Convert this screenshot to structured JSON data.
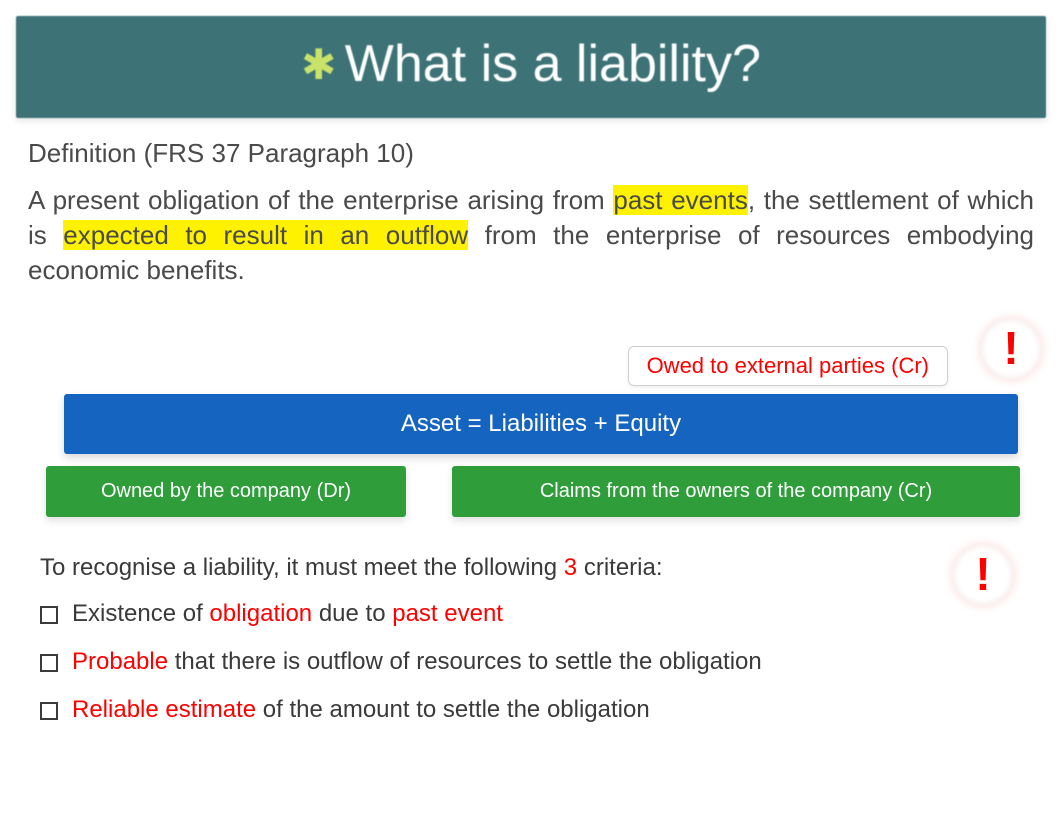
{
  "header": {
    "asterisk": "✱",
    "title": "What is a liability?",
    "bg_color": "#3d7377",
    "asterisk_color": "#c9e26a",
    "title_color": "#ffffff",
    "title_fontsize": 52
  },
  "definition": {
    "heading": "Definition (FRS 37 Paragraph 10)",
    "pre1": "A present obligation of the enterprise arising from ",
    "hl1": "past events",
    "mid1": ", the settlement of which is ",
    "hl2": "expected to result in an outflow",
    "post1": " from the enterprise of resources embodying economic benefits.",
    "text_color": "#4a4a4a",
    "highlight_color": "#fff200",
    "fontsize": 26
  },
  "diagram": {
    "callout_top": "Owed to external parties (Cr)",
    "bang": "!",
    "equation": "Asset = Liabilities + Equity",
    "green_left": "Owned by the company (Dr)",
    "green_right": "Claims from the owners of the company (Cr)",
    "callout_color": "#ff0000",
    "blue_bg": "#1565c0",
    "green_bg": "#2e9d3a",
    "bang_color": "#ff0000"
  },
  "criteria": {
    "intro_pre": "To recognise a liability, it must meet the following ",
    "intro_num": "3",
    "intro_post": " criteria:",
    "items": [
      {
        "p1": "Existence of ",
        "r1": "obligation",
        "p2": " due to ",
        "r2": "past event",
        "p3": ""
      },
      {
        "p1": "",
        "r1": "Probable",
        "p2": " that there is outflow of resources to settle the obligation",
        "r2": "",
        "p3": ""
      },
      {
        "p1": "",
        "r1": "Reliable estimate",
        "p2": " of the amount to settle the obligation",
        "r2": "",
        "p3": ""
      }
    ],
    "bang": "!",
    "text_color": "#3a3a3a",
    "red_color": "#ff0000",
    "fontsize": 24
  }
}
